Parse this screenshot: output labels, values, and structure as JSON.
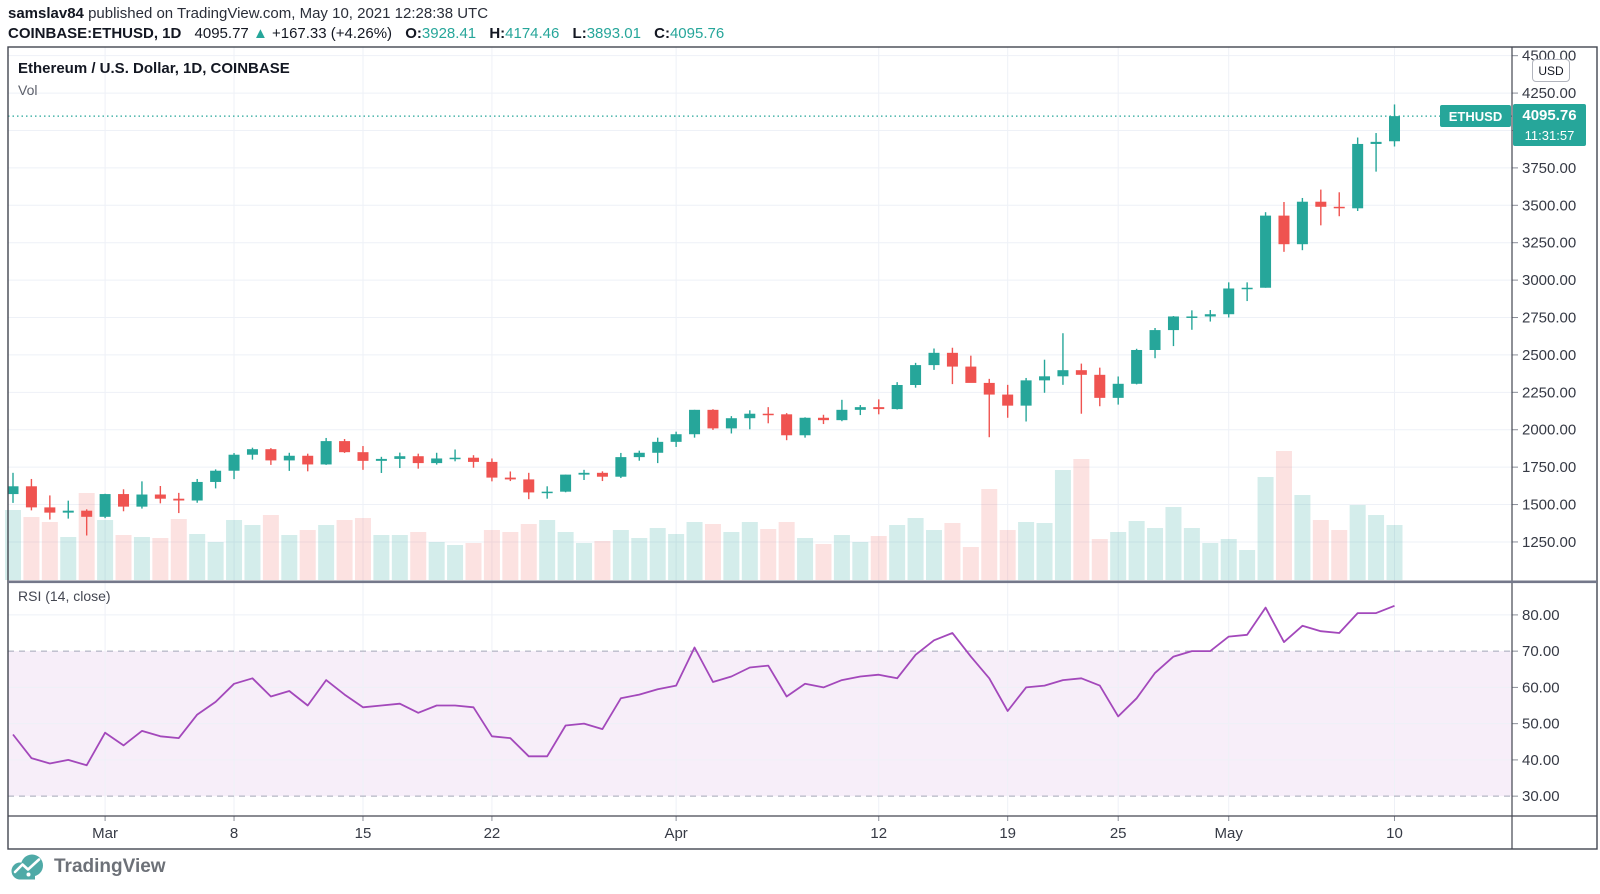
{
  "header": {
    "line1": {
      "user": "samslav84",
      "rest": " published on TradingView.com, May 10, 2021 12:28:38 UTC"
    },
    "line2": {
      "symbol": "COINBASE:ETHUSD, 1D",
      "price": "4095.77",
      "arrow": "▲",
      "change": "+167.33 (+4.26%)",
      "o_label": "O:",
      "o": "3928.41",
      "h_label": "H:",
      "h": "4174.46",
      "l_label": "L:",
      "l": "3893.01",
      "c_label": "C:",
      "c": "4095.76"
    }
  },
  "chart": {
    "title": "Ethereum / U.S. Dollar, 1D, COINBASE",
    "indicator_label": "Vol",
    "currency_button": "USD",
    "symbol_tag": "ETHUSD",
    "last_price_label": "4095.76",
    "countdown": "11:31:57"
  },
  "rsi_panel": {
    "label": "RSI (14, close)"
  },
  "footer": {
    "brand": "TradingView"
  },
  "colors": {
    "up": "#26a69a",
    "down": "#ef5350",
    "vol_up": "rgba(38,166,154,0.20)",
    "vol_down": "rgba(239,83,80,0.17)",
    "grid": "#eef1f7",
    "axis_line": "#434651",
    "axis_text": "#363a45",
    "divider": "#74788288",
    "price_line": "#26a69a",
    "rsi_line": "#a348bb",
    "rsi_band": "rgba(156,39,176,0.08)",
    "rsi_band_border": "#a3a6b7"
  },
  "chart_data": {
    "type": "candlestick",
    "title": "Ethereum / U.S. Dollar, 1D, COINBASE",
    "symbol": "COINBASE:ETHUSD",
    "interval": "1D",
    "price_line": 4095.76,
    "price_axis": {
      "currency": "USD",
      "ylim": [
        989,
        4558
      ],
      "ticks": [
        4500,
        4250,
        4000,
        3750,
        3500,
        3250,
        3000,
        2750,
        2500,
        2250,
        2000,
        1750,
        1500,
        1250
      ]
    },
    "x_ticks": [
      {
        "label": "Mar",
        "index": 5
      },
      {
        "label": "8",
        "index": 12
      },
      {
        "label": "15",
        "index": 19
      },
      {
        "label": "22",
        "index": 26
      },
      {
        "label": "Apr",
        "index": 36
      },
      {
        "label": "12",
        "index": 47
      },
      {
        "label": "19",
        "index": 54
      },
      {
        "label": "25",
        "index": 60
      },
      {
        "label": "May",
        "index": 66
      },
      {
        "label": "10",
        "index": 75
      }
    ],
    "columns": [
      "date",
      "open",
      "high",
      "low",
      "close",
      "volume_rel"
    ],
    "candles": [
      [
        "Feb 24",
        1570,
        1712,
        1511,
        1622,
        70
      ],
      [
        "Feb 25",
        1622,
        1671,
        1461,
        1481,
        63
      ],
      [
        "Feb 26",
        1481,
        1561,
        1400,
        1446,
        58
      ],
      [
        "Feb 27",
        1446,
        1526,
        1406,
        1459,
        43
      ],
      [
        "Feb 28",
        1459,
        1468,
        1293,
        1418,
        87
      ],
      [
        "Mar 1",
        1418,
        1572,
        1409,
        1570,
        60
      ],
      [
        "Mar 2",
        1570,
        1602,
        1455,
        1486,
        45
      ],
      [
        "Mar 3",
        1486,
        1655,
        1473,
        1567,
        43
      ],
      [
        "Mar 4",
        1567,
        1624,
        1508,
        1539,
        42
      ],
      [
        "Mar 5",
        1539,
        1578,
        1443,
        1527,
        61
      ],
      [
        "Mar 6",
        1527,
        1671,
        1512,
        1651,
        46
      ],
      [
        "Mar 7",
        1651,
        1735,
        1608,
        1726,
        38
      ],
      [
        "Mar 8",
        1726,
        1844,
        1670,
        1833,
        60
      ],
      [
        "Mar 9",
        1833,
        1880,
        1800,
        1870,
        55
      ],
      [
        "Mar 10",
        1870,
        1877,
        1765,
        1795,
        65
      ],
      [
        "Mar 11",
        1795,
        1846,
        1725,
        1826,
        45
      ],
      [
        "Mar 12",
        1826,
        1840,
        1722,
        1768,
        50
      ],
      [
        "Mar 13",
        1768,
        1945,
        1765,
        1924,
        55
      ],
      [
        "Mar 14",
        1924,
        1938,
        1845,
        1850,
        60
      ],
      [
        "Mar 15",
        1850,
        1891,
        1732,
        1792,
        62
      ],
      [
        "Mar 16",
        1792,
        1819,
        1711,
        1805,
        45
      ],
      [
        "Mar 17",
        1805,
        1847,
        1744,
        1823,
        45
      ],
      [
        "Mar 18",
        1823,
        1840,
        1740,
        1777,
        48
      ],
      [
        "Mar 19",
        1777,
        1846,
        1767,
        1808,
        38
      ],
      [
        "Mar 20",
        1808,
        1868,
        1789,
        1813,
        35
      ],
      [
        "Mar 21",
        1813,
        1830,
        1746,
        1785,
        37
      ],
      [
        "Mar 22",
        1785,
        1808,
        1655,
        1680,
        50
      ],
      [
        "Mar 23",
        1680,
        1721,
        1657,
        1668,
        48
      ],
      [
        "Mar 24",
        1668,
        1712,
        1536,
        1581,
        56
      ],
      [
        "Mar 25",
        1581,
        1622,
        1539,
        1586,
        60
      ],
      [
        "Mar 26",
        1586,
        1700,
        1582,
        1700,
        48
      ],
      [
        "Mar 27",
        1700,
        1732,
        1664,
        1712,
        37
      ],
      [
        "Mar 28",
        1712,
        1722,
        1657,
        1686,
        39
      ],
      [
        "Mar 29",
        1686,
        1845,
        1677,
        1817,
        50
      ],
      [
        "Mar 30",
        1817,
        1860,
        1793,
        1846,
        42
      ],
      [
        "Mar 31",
        1846,
        1947,
        1777,
        1919,
        52
      ],
      [
        "Apr 1",
        1919,
        1987,
        1885,
        1970,
        46
      ],
      [
        "Apr 2",
        1970,
        2133,
        1947,
        2133,
        58
      ],
      [
        "Apr 3",
        2133,
        2137,
        1999,
        2009,
        56
      ],
      [
        "Apr 4",
        2009,
        2091,
        1975,
        2077,
        48
      ],
      [
        "Apr 5",
        2077,
        2130,
        2003,
        2107,
        58
      ],
      [
        "Apr 6",
        2107,
        2151,
        2043,
        2103,
        51
      ],
      [
        "Apr 7",
        2103,
        2111,
        1930,
        1963,
        58
      ],
      [
        "Apr 8",
        1963,
        2083,
        1947,
        2080,
        42
      ],
      [
        "Apr 9",
        2080,
        2100,
        2038,
        2064,
        36
      ],
      [
        "Apr 10",
        2064,
        2200,
        2057,
        2133,
        45
      ],
      [
        "Apr 11",
        2133,
        2165,
        2098,
        2151,
        38
      ],
      [
        "Apr 12",
        2151,
        2203,
        2103,
        2138,
        44
      ],
      [
        "Apr 13",
        2138,
        2318,
        2135,
        2299,
        55
      ],
      [
        "Apr 14",
        2299,
        2447,
        2281,
        2432,
        62
      ],
      [
        "Apr 15",
        2432,
        2543,
        2400,
        2514,
        50
      ],
      [
        "Apr 16",
        2514,
        2548,
        2305,
        2422,
        57
      ],
      [
        "Apr 17",
        2422,
        2495,
        2321,
        2313,
        33
      ],
      [
        "Apr 18",
        2313,
        2340,
        1950,
        2235,
        91
      ],
      [
        "Apr 19",
        2235,
        2300,
        2080,
        2161,
        50
      ],
      [
        "Apr 20",
        2161,
        2346,
        2055,
        2330,
        58
      ],
      [
        "Apr 21",
        2330,
        2468,
        2247,
        2357,
        57
      ],
      [
        "Apr 22",
        2357,
        2645,
        2300,
        2398,
        110
      ],
      [
        "Apr 23",
        2398,
        2442,
        2107,
        2367,
        121
      ],
      [
        "Apr 24",
        2367,
        2415,
        2157,
        2213,
        41
      ],
      [
        "Apr 25",
        2213,
        2356,
        2168,
        2307,
        48
      ],
      [
        "Apr 26",
        2307,
        2541,
        2303,
        2533,
        59
      ],
      [
        "Apr 27",
        2533,
        2680,
        2478,
        2666,
        52
      ],
      [
        "Apr 28",
        2666,
        2760,
        2559,
        2757,
        73
      ],
      [
        "Apr 29",
        2757,
        2798,
        2668,
        2757,
        52
      ],
      [
        "Apr 30",
        2757,
        2800,
        2723,
        2772,
        37
      ],
      [
        "May 1",
        2772,
        2985,
        2750,
        2944,
        41
      ],
      [
        "May 2",
        2944,
        2985,
        2860,
        2949,
        30
      ],
      [
        "May 3",
        2949,
        3454,
        2949,
        3431,
        103
      ],
      [
        "May 4",
        3431,
        3522,
        3189,
        3240,
        129
      ],
      [
        "May 5",
        3240,
        3549,
        3200,
        3524,
        85
      ],
      [
        "May 6",
        3524,
        3605,
        3366,
        3490,
        60
      ],
      [
        "May 7",
        3490,
        3587,
        3427,
        3480,
        50
      ],
      [
        "May 8",
        3480,
        3953,
        3462,
        3910,
        75
      ],
      [
        "May 9",
        3910,
        3983,
        3725,
        3924,
        65
      ],
      [
        "May 10",
        3928,
        4174,
        3893,
        4096,
        55
      ]
    ],
    "rsi": {
      "label": "RSI (14, close)",
      "period": 14,
      "source": "close",
      "overbought": 70,
      "oversold": 30,
      "ylim": [
        24.8,
        88.8
      ],
      "ticks": [
        80,
        70,
        60,
        50,
        40,
        30
      ],
      "dashed_ticks": [
        70,
        30
      ],
      "values": [
        47,
        40.5,
        39,
        40,
        38.5,
        47.5,
        44,
        48,
        46.5,
        46,
        52.5,
        56,
        61,
        62.5,
        57.5,
        59,
        55,
        62,
        58,
        54.5,
        55,
        55.5,
        53,
        55,
        55,
        54.5,
        46.5,
        46,
        41,
        41,
        49.5,
        50,
        48.5,
        57,
        58,
        59.5,
        60.5,
        71,
        61.5,
        63,
        65.5,
        66,
        57.5,
        61,
        60,
        62,
        63,
        63.5,
        62.5,
        69,
        73,
        75,
        68.5,
        62.5,
        53.5,
        60,
        60.5,
        62,
        62.5,
        60.5,
        52,
        57,
        64,
        68.5,
        70,
        70,
        74,
        74.5,
        82,
        72.5,
        77,
        75.5,
        75,
        80.5,
        80.5,
        82.5
      ]
    }
  }
}
